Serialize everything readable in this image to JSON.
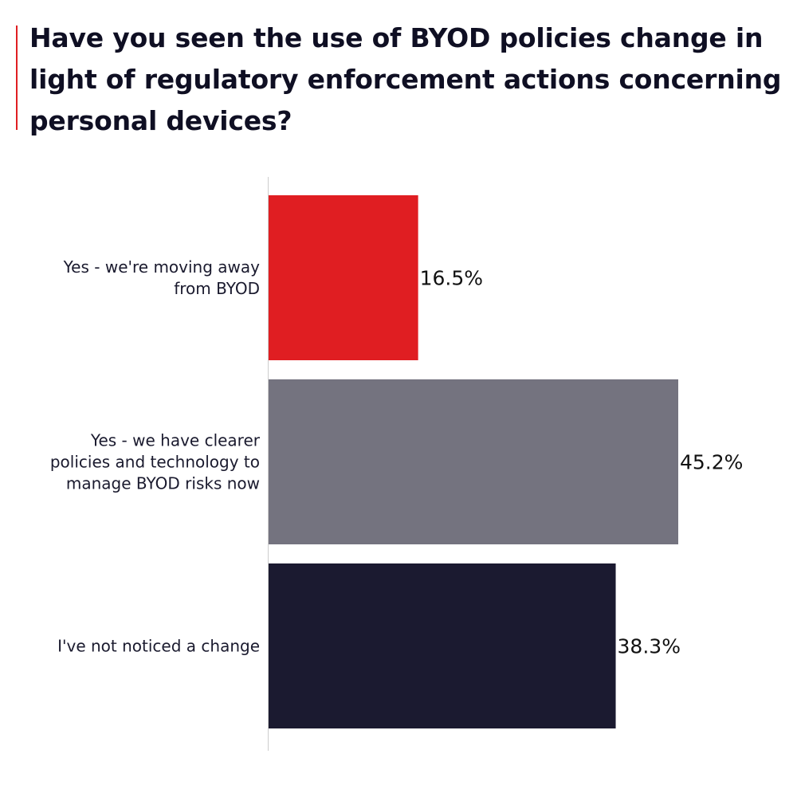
{
  "title": "Have you seen the use of BYOD policies change in light of regulatory enforcement actions concerning personal devices?",
  "colors": {
    "accent": "#e01e22",
    "axis": "#cccccc"
  },
  "chart_data": {
    "type": "bar",
    "orientation": "horizontal",
    "categories": [
      [
        "Yes - we're moving away",
        "from BYOD"
      ],
      [
        "Yes - we have clearer",
        "policies and technology to",
        "manage BYOD risks now"
      ],
      [
        "I've not noticed a change"
      ]
    ],
    "values": [
      16.5,
      45.2,
      38.3
    ],
    "value_labels": [
      "16.5%",
      "45.2%",
      "38.3%"
    ],
    "colors": [
      "#e01e22",
      "#74737f",
      "#1b1a30"
    ],
    "unit": "%",
    "xlim": [
      0,
      45.2
    ],
    "grid": false,
    "legend": "none"
  }
}
